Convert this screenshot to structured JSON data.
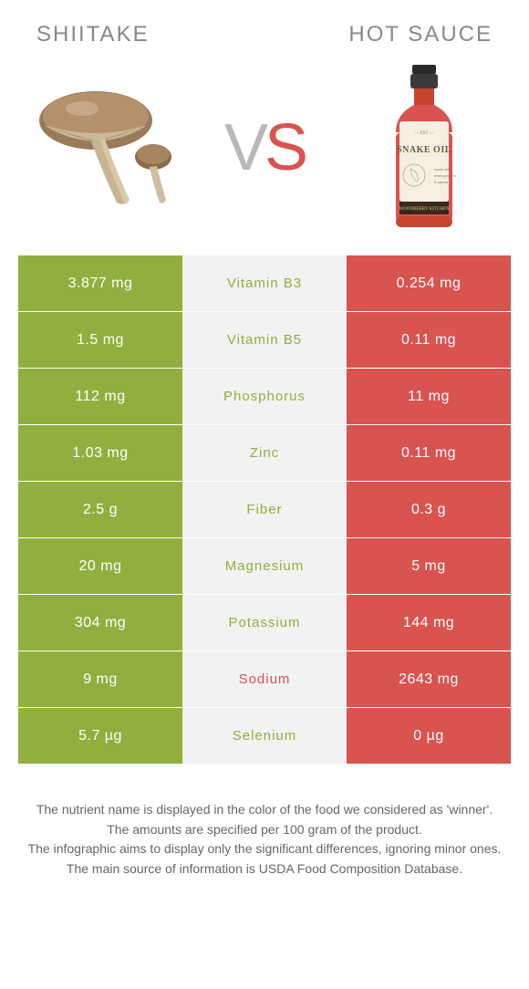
{
  "header": {
    "left_title": "Shiitake",
    "right_title": "Hot sauce"
  },
  "vs": {
    "v": "V",
    "s": "S"
  },
  "colors": {
    "left_bg": "#8fb03e",
    "right_bg": "#d9534f",
    "mid_bg": "#f2f2f2",
    "winner_left_text": "#8fb03e",
    "winner_right_text": "#d9534f"
  },
  "bottle_label": "SNAKE OIL",
  "rows": [
    {
      "left": "3.877 mg",
      "mid": "Vitamin B3",
      "right": "0.254 mg",
      "winner": "left"
    },
    {
      "left": "1.5 mg",
      "mid": "Vitamin B5",
      "right": "0.11 mg",
      "winner": "left"
    },
    {
      "left": "112 mg",
      "mid": "Phosphorus",
      "right": "11 mg",
      "winner": "left"
    },
    {
      "left": "1.03 mg",
      "mid": "Zinc",
      "right": "0.11 mg",
      "winner": "left"
    },
    {
      "left": "2.5 g",
      "mid": "Fiber",
      "right": "0.3 g",
      "winner": "left"
    },
    {
      "left": "20 mg",
      "mid": "Magnesium",
      "right": "5 mg",
      "winner": "left"
    },
    {
      "left": "304 mg",
      "mid": "Potassium",
      "right": "144 mg",
      "winner": "left"
    },
    {
      "left": "9 mg",
      "mid": "Sodium",
      "right": "2643 mg",
      "winner": "right"
    },
    {
      "left": "5.7 µg",
      "mid": "Selenium",
      "right": "0 µg",
      "winner": "left"
    }
  ],
  "footer": {
    "line1": "The nutrient name is displayed in the color of the food we considered as 'winner'.",
    "line2": "The amounts are specified per 100 gram of the product.",
    "line3": "The infographic aims to display only the significant differences, ignoring minor ones.",
    "line4": "The main source of information is USDA Food Composition Database."
  }
}
